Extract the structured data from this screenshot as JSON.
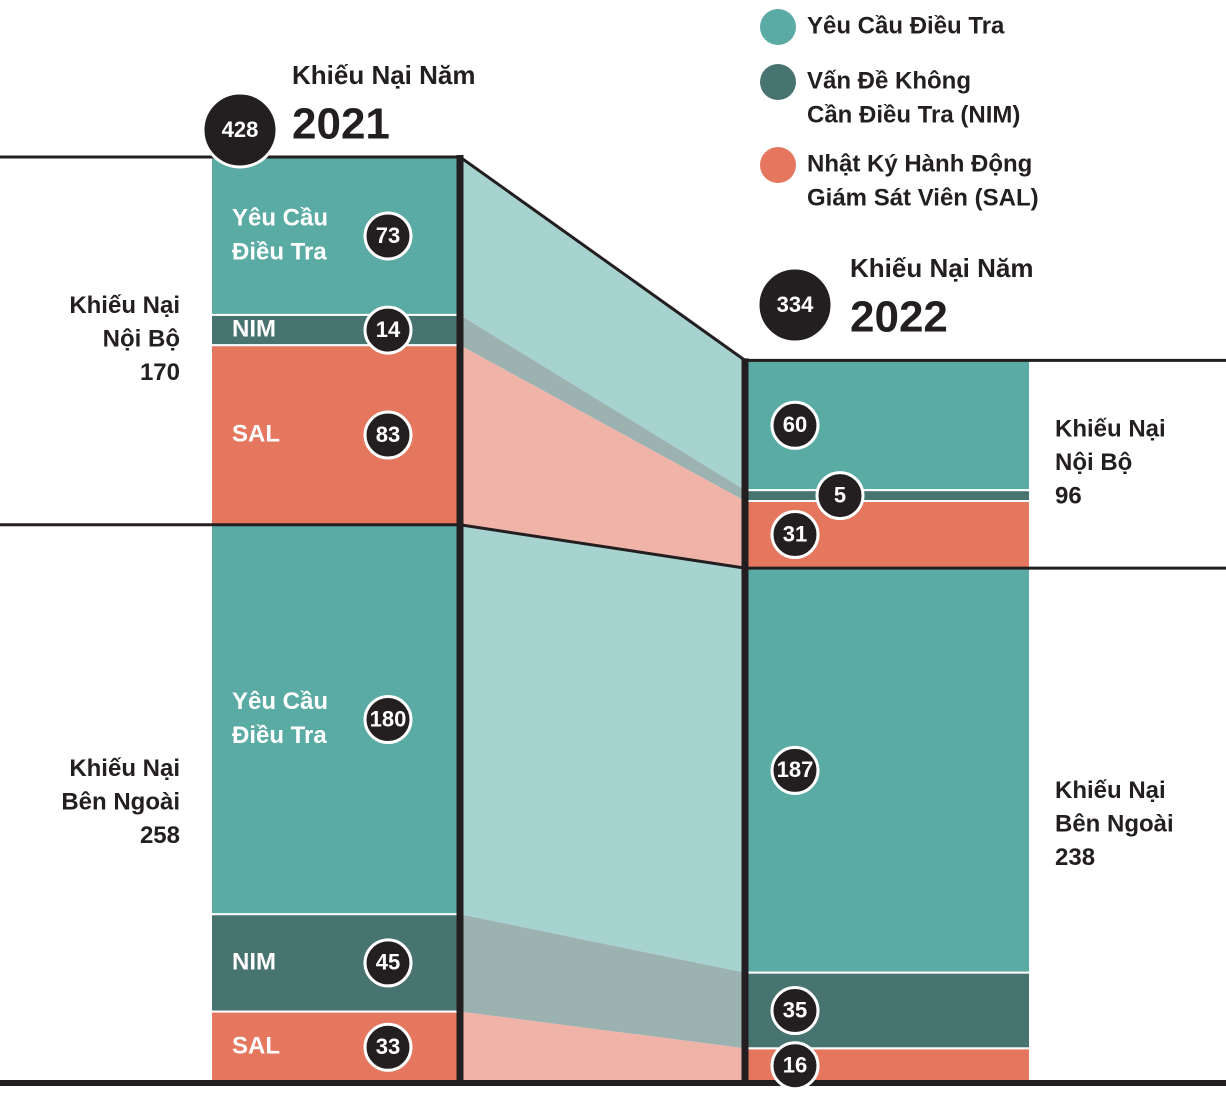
{
  "chart_data": {
    "type": "alluvial",
    "legend": [
      {
        "name": [
          "Yêu Cầu Điều Tra"
        ],
        "color": "#5aaba4",
        "flow_color": "#a6d3d0"
      },
      {
        "name": [
          "Vấn Đề Không",
          "Cần Điều Tra (NIM)"
        ],
        "color": "#477370",
        "flow_color": "#9bb2b1"
      },
      {
        "name": [
          "Nhật Ký Hành Động",
          "Giám Sát Viên (SAL)"
        ],
        "color": "#e5775f",
        "flow_color": "#f0b3a7"
      }
    ],
    "columns": [
      {
        "title": "Khiếu Nại Năm",
        "year": "2021",
        "total": 428,
        "groups": [
          {
            "label": [
              "Khiếu Nại",
              "Nội Bộ"
            ],
            "total": 170,
            "values": [
              73,
              14,
              83
            ],
            "segment_labels": [
              [
                "Yêu Cầu",
                "Điều Tra"
              ],
              [
                "NIM"
              ],
              [
                "SAL"
              ]
            ]
          },
          {
            "label": [
              "Khiếu Nại",
              "Bên Ngoài"
            ],
            "total": 258,
            "values": [
              180,
              45,
              33
            ],
            "segment_labels": [
              [
                "Yêu Cầu",
                "Điều Tra"
              ],
              [
                "NIM"
              ],
              [
                "SAL"
              ]
            ]
          }
        ]
      },
      {
        "title": "Khiếu Nại Năm",
        "year": "2022",
        "total": 334,
        "groups": [
          {
            "label": [
              "Khiếu Nại",
              "Nội Bộ"
            ],
            "total": 96,
            "values": [
              60,
              5,
              31
            ]
          },
          {
            "label": [
              "Khiếu Nại",
              "Bên Ngoài"
            ],
            "total": 238,
            "values": [
              187,
              35,
              16
            ]
          }
        ]
      }
    ]
  }
}
